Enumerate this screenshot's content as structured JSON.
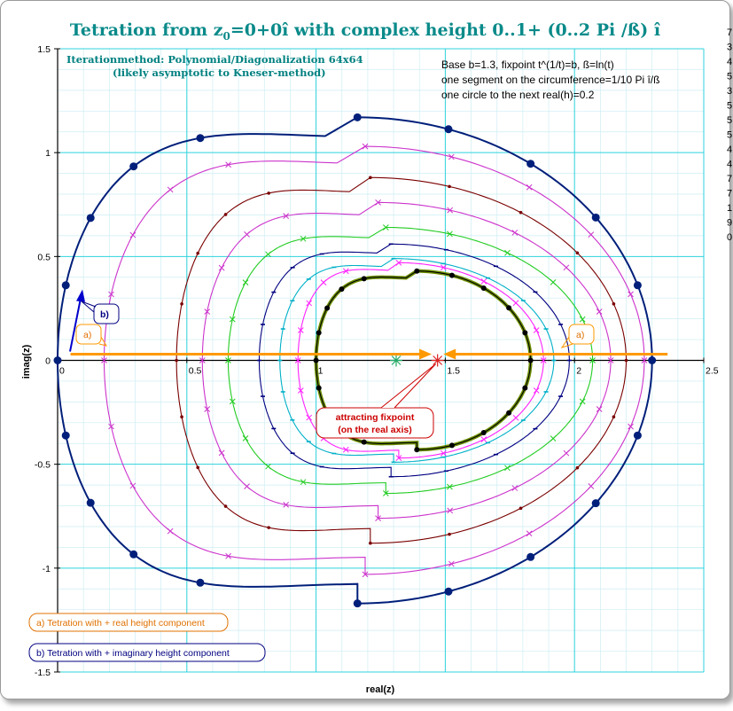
{
  "chart_data": {
    "type": "line",
    "title_main": "Tetration from z",
    "title_sub": "0",
    "title_rest": "=0+0î with complex height 0..1+ (0..2 Pi /ß) î",
    "subtitle_lines": [
      "Iterationmethod: Polynomial/Diagonalization 64x64",
      "(likely asymptotic to Kneser-method)"
    ],
    "info_lines": [
      "Base b=1.3, fixpoint t^(1/t)=b, ß=ln(t)",
      "one segment on the circumference=1/10 Pi î/ß",
      "one circle to the next  real(h)=0.2"
    ],
    "xlabel": "real(z)",
    "ylabel": "imag(z)",
    "xlim": [
      0,
      2.5
    ],
    "ylim": [
      -1.5,
      1.5
    ],
    "x_ticks": [
      "0",
      "0.5",
      "1",
      "1.5",
      "2",
      "2.5"
    ],
    "y_ticks": [
      "1.5",
      "1",
      "0.5",
      "0",
      "-0.5",
      "-1",
      "-1.5"
    ],
    "grid": true,
    "fixpoint": 1.47,
    "center_marker": 1.31,
    "curves": [
      {
        "cx": 1.16,
        "rx": 1.14,
        "ry": 1.17,
        "left": 0.0,
        "color": "#001f7a",
        "marker": "dot-large"
      },
      {
        "cx": 1.19,
        "rx": 1.08,
        "ry": 1.03,
        "left": 0.18,
        "color": "#cc33cc",
        "marker": "x"
      },
      {
        "cx": 1.21,
        "rx": 0.99,
        "ry": 0.88,
        "left": 0.46,
        "color": "#7a0000",
        "marker": "dot-small"
      },
      {
        "cx": 1.24,
        "rx": 0.9,
        "ry": 0.76,
        "left": 0.56,
        "color": "#cc33cc",
        "marker": "x"
      },
      {
        "cx": 1.27,
        "rx": 0.8,
        "ry": 0.64,
        "left": 0.66,
        "color": "#22cc22",
        "marker": "x"
      },
      {
        "cx": 1.29,
        "rx": 0.69,
        "ry": 0.56,
        "left": 0.78,
        "color": "#000080",
        "marker": "dash"
      },
      {
        "cx": 1.3,
        "rx": 0.62,
        "ry": 0.49,
        "left": 0.86,
        "color": "#00b0c8",
        "marker": "dash"
      },
      {
        "cx": 1.32,
        "rx": 0.56,
        "ry": 0.47,
        "left": 0.93,
        "color": "#ff22ff",
        "marker": "x"
      },
      {
        "cx": 1.39,
        "rx": 0.44,
        "ry": 0.43,
        "left": 1.0,
        "color": "#000000",
        "marker": "dot-large",
        "underline": "#6b8e00"
      }
    ],
    "arrows": [
      {
        "from": 0.05,
        "to": 1.42,
        "y": 0.03,
        "label": "a)",
        "color": "#ff9900"
      },
      {
        "from": 2.36,
        "to": 1.52,
        "y": 0.03,
        "label": "a)",
        "color": "#ff9900"
      }
    ],
    "callouts": {
      "b_label": "b)",
      "fixpoint_lines": [
        "attracting fixpoint",
        "(on the real axis)"
      ]
    },
    "legend": [
      {
        "text": "a) Tetration with + real height component",
        "color": "#e07000"
      },
      {
        "text": "b) Tetration with + imaginary height component",
        "color": "#000080"
      }
    ],
    "right_strip": [
      "7",
      "3",
      "4",
      "5",
      "3",
      "5",
      "5",
      "5",
      "4",
      "4",
      "7",
      "7",
      "1",
      "9",
      "0"
    ]
  }
}
